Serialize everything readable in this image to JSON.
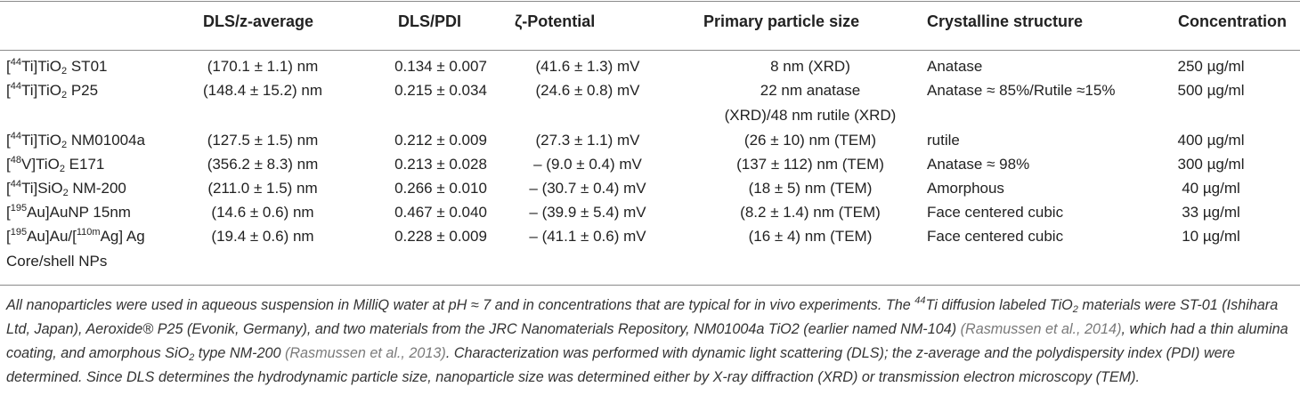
{
  "headers": {
    "sample": "",
    "dls_z": "DLS/z-average",
    "dls_pdi": "DLS/PDI",
    "zeta": "ζ-Potential",
    "pps": "Primary particle size",
    "crystal": "Crystalline structure",
    "conc": "Concentration"
  },
  "rows": [
    {
      "name_sup": "44",
      "name_el": "Ti]TiO",
      "name_sub": "2",
      "name_rest": " ST01",
      "dls_z": "(170.1 ± 1.1) nm",
      "pdi": "0.134 ± 0.007",
      "zeta": "(41.6 ± 1.3) mV",
      "pps": "8 nm (XRD)",
      "crystal": "Anatase",
      "conc": "250 µg/ml"
    },
    {
      "name_sup": "44",
      "name_el": "Ti]TiO",
      "name_sub": "2",
      "name_rest": " P25",
      "dls_z": "(148.4 ± 15.2) nm",
      "pdi": "0.215 ± 0.034",
      "zeta": "(24.6 ± 0.8) mV",
      "pps": "22 nm anatase",
      "pps2": "(XRD)/48 nm rutile (XRD)",
      "crystal": "Anatase ≈ 85%/Rutile ≈15%",
      "conc": "500 µg/ml"
    },
    {
      "name_sup": "44",
      "name_el": "Ti]TiO",
      "name_sub": "2",
      "name_rest": " NM01004a",
      "dls_z": "(127.5 ± 1.5) nm",
      "pdi": "0.212 ± 0.009",
      "zeta": "(27.3 ± 1.1) mV",
      "pps": "(26 ± 10) nm (TEM)",
      "crystal": "rutile",
      "conc": "400 µg/ml"
    },
    {
      "name_sup": "48",
      "name_el": "V]TiO",
      "name_sub": "2",
      "name_rest": " E171",
      "dls_z": "(356.2 ± 8.3) nm",
      "pdi": "0.213 ± 0.028",
      "zeta": "– (9.0 ± 0.4) mV",
      "pps": "(137 ± 112) nm (TEM)",
      "crystal": "Anatase ≈ 98%",
      "conc": "300 µg/ml"
    },
    {
      "name_sup": "44",
      "name_el": "Ti]SiO",
      "name_sub": "2",
      "name_rest": " NM-200",
      "dls_z": "(211.0 ± 1.5) nm",
      "pdi": "0.266 ± 0.010",
      "zeta": "– (30.7 ± 0.4) mV",
      "pps": "(18 ± 5) nm (TEM)",
      "crystal": "Amorphous",
      "conc": "40 µg/ml"
    },
    {
      "name_sup": "195",
      "name_el": "Au]AuNP 15nm",
      "name_sub": "",
      "name_rest": "",
      "dls_z": "(14.6 ± 0.6) nm",
      "pdi": "0.467 ± 0.040",
      "zeta": "– (39.9 ± 5.4) mV",
      "pps": "(8.2 ± 1.4) nm (TEM)",
      "crystal": "Face centered cubic",
      "conc": "33 µg/ml"
    },
    {
      "name_sup": "195",
      "name_el": "Au]Au/[",
      "name_sup2": "110m",
      "name_el2": "Ag] Ag",
      "name_line2": "Core/shell NPs",
      "dls_z": "(19.4 ± 0.6) nm",
      "pdi": "0.228 ± 0.009",
      "zeta": "– (41.1 ± 0.6) mV",
      "pps": "(16 ± 4) nm (TEM)",
      "crystal": "Face centered cubic",
      "conc": "10 µg/ml"
    }
  ],
  "footnote": {
    "t1": "All nanoparticles were used in aqueous suspension in MilliQ water at pH ≈ 7 and in concentrations that are typical for in vivo experiments. The ",
    "t1_sup": "44",
    "t2": "Ti diffusion labeled TiO",
    "t2_sub": "2",
    "t3": " materials were ST-01 (Ishihara Ltd, Japan), Aeroxide® P25 (Evonik, Germany), and two materials from the JRC Nanomaterials Repository, NM01004a TiO2 (earlier named NM-104) ",
    "ref1": "(Rasmussen et al., 2014)",
    "t4": ", which had a thin alumina coating, and amorphous SiO",
    "t4_sub": "2",
    "t5": " type NM-200 ",
    "ref2": "(Rasmussen et al., 2013)",
    "t6": ". Characterization was performed with dynamic light scattering (DLS); the z-average and the polydispersity index (PDI) were determined. Since DLS determines the hydrodynamic particle size, nanoparticle size was determined either by X-ray diffraction (XRD) or transmission electron microscopy (TEM)."
  }
}
